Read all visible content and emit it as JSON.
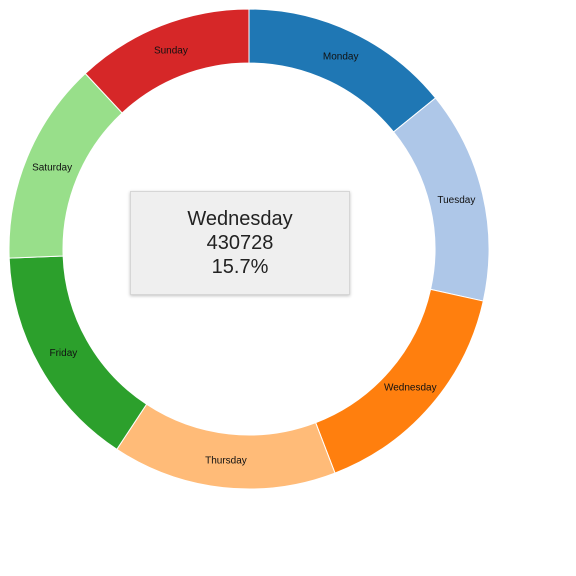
{
  "chart_data": {
    "type": "pie",
    "variant": "donut",
    "categories": [
      "Monday",
      "Tuesday",
      "Wednesday",
      "Thursday",
      "Friday",
      "Saturday",
      "Sunday"
    ],
    "values": [
      389000,
      393000,
      430728,
      415000,
      415000,
      375000,
      328000
    ],
    "colors": [
      "#1f77b4",
      "#aec7e8",
      "#ff7f0e",
      "#ffbb78",
      "#2ca02c",
      "#98df8a",
      "#d62728"
    ]
  },
  "tooltip": {
    "label": "Wednesday",
    "value": "430728",
    "percent": "15.7%"
  }
}
